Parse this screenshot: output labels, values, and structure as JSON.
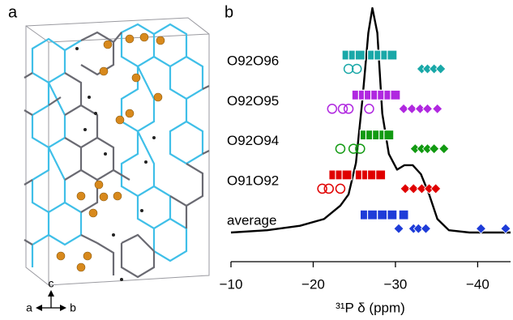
{
  "panel_a": {
    "label": "a",
    "axis_c": "c",
    "axis_a": "a",
    "axis_b": "b"
  },
  "chart_data": {
    "type": "nmr",
    "panel_label": "b",
    "x_label": "³¹P δ (ppm)",
    "xlim": [
      -10,
      -44
    ],
    "xticks": [
      {
        "value": -10,
        "label": "−10"
      },
      {
        "value": -20,
        "label": "−20"
      },
      {
        "value": -30,
        "label": "−30"
      },
      {
        "value": -40,
        "label": "−40"
      }
    ],
    "spectrum": {
      "color": "#000000",
      "x": [
        -10.0,
        -14.4,
        -18.4,
        -21.3,
        -23.3,
        -24.3,
        -25.2,
        -26.0,
        -26.7,
        -27.2,
        -27.8,
        -28.4,
        -29.2,
        -30.2,
        -31.1,
        -32.1,
        -33.1,
        -34.1,
        -35.1,
        -36.5,
        -39.0,
        -44.0
      ],
      "y": [
        0,
        0.01,
        0.03,
        0.06,
        0.12,
        0.17,
        0.31,
        0.6,
        0.89,
        1,
        0.89,
        0.53,
        0.35,
        0.28,
        0.3,
        0.3,
        0.26,
        0.17,
        0.06,
        0.01,
        0,
        0
      ]
    },
    "rows": [
      {
        "name": "O92O96",
        "color": "#1aa8a8",
        "squares": [
          -24.1,
          -24.9,
          -25.7,
          -27.2,
          -28.0,
          -28.8,
          -29.6
        ],
        "circles": [
          -24.3,
          -25.3
        ],
        "diamonds": [
          -33.2,
          -33.9,
          -34.7,
          -35.5
        ]
      },
      {
        "name": "O92O95",
        "color": "#b028e0",
        "squares": [
          -25.3,
          -26.1,
          -26.8,
          -27.6,
          -28.4,
          -29.2,
          -30.0
        ],
        "circles": [
          -22.3,
          -23.6,
          -24.3,
          -26.8
        ],
        "diamonds": [
          -31.0,
          -32.0,
          -33.0,
          -33.9,
          -35.1
        ]
      },
      {
        "name": "O92O94",
        "color": "#129a12",
        "squares": [
          -26.3,
          -27.0,
          -27.8,
          -28.6,
          -29.2
        ],
        "circles": [
          -23.3,
          -24.9,
          -25.7
        ],
        "diamonds": [
          -32.4,
          -33.2,
          -33.9,
          -34.7,
          -35.9
        ]
      },
      {
        "name": "O91O92",
        "color": "#e00000",
        "squares": [
          -22.5,
          -23.3,
          -24.1,
          -25.7,
          -26.5,
          -27.2,
          -28.2
        ],
        "circles": [
          -21.1,
          -21.9,
          -23.3
        ],
        "diamonds": [
          -31.2,
          -32.2,
          -33.2,
          -34.1,
          -34.9
        ]
      },
      {
        "name": "average",
        "color": "#1e3cd8",
        "squares": [
          -26.3,
          -27.2,
          -28.4,
          -29.6,
          -31.0
        ],
        "circles": [],
        "diamonds": [
          -30.4,
          -32.2,
          -32.8,
          -33.7,
          -40.4,
          -43.4
        ]
      }
    ]
  }
}
